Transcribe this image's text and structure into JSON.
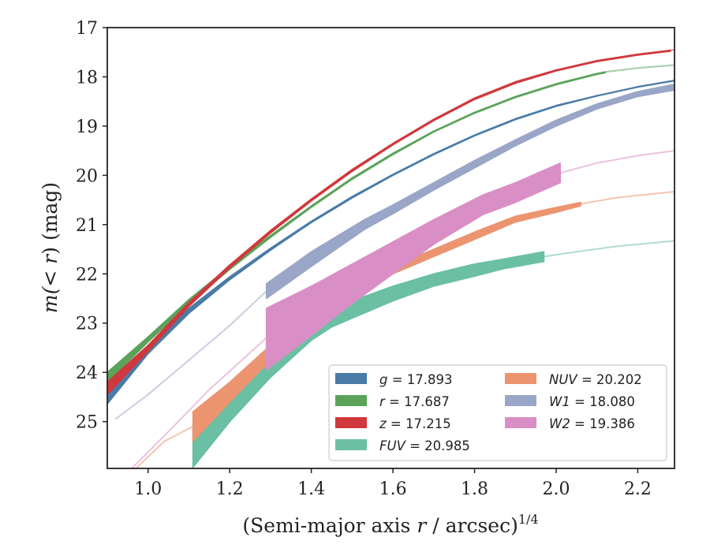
{
  "chart_data": {
    "type": "line",
    "title": "",
    "xlabel": "(Semi-major axis r / arcsec)^{1/4}",
    "xlabel_parts": {
      "main": "(Semi-major axis ",
      "var": "r",
      "rest": " / arcsec)",
      "exp": "1/4"
    },
    "ylabel": "m(<r) (mag)",
    "ylabel_parts": {
      "pre": "m(",
      "var": "< r",
      "post": ") (mag)"
    },
    "xlim": [
      0.9,
      2.29
    ],
    "ylim": [
      25.95,
      17.0
    ],
    "y_inverted": true,
    "xticks": [
      1.0,
      1.2,
      1.4,
      1.6,
      1.8,
      2.0,
      2.2
    ],
    "xtick_labels": [
      "1.0",
      "1.2",
      "1.4",
      "1.6",
      "1.8",
      "2.0",
      "2.2"
    ],
    "yticks": [
      17,
      18,
      19,
      20,
      21,
      22,
      23,
      24,
      25
    ],
    "ytick_labels": [
      "17",
      "18",
      "19",
      "20",
      "21",
      "22",
      "23",
      "24",
      "25"
    ],
    "grid": false,
    "legend_position": "lower-right",
    "legend_columns": 2,
    "series": [
      {
        "name": "g = 17.893",
        "label_var": "g",
        "label_val": "= 17.893",
        "color": "#4a7ba7",
        "band": {
          "x": [
            0.9,
            1.0,
            1.1,
            1.2,
            1.3,
            1.4,
            1.5,
            1.6,
            1.7,
            1.8,
            1.9,
            2.0,
            2.1,
            2.2,
            2.29
          ],
          "y_upper": [
            24.48,
            23.5,
            22.7,
            22.06,
            21.48,
            20.93,
            20.43,
            19.98,
            19.56,
            19.18,
            18.85,
            18.58,
            18.38,
            18.2,
            18.07
          ],
          "y_lower": [
            24.64,
            23.62,
            22.8,
            22.12,
            21.52,
            20.96,
            20.46,
            20.0,
            19.58,
            19.2,
            18.87,
            18.6,
            18.39,
            18.21,
            18.08
          ],
          "x_end": 2.2
        },
        "ext_x": [
          2.2,
          2.29
        ],
        "ext_y": [
          18.2,
          18.08
        ]
      },
      {
        "name": "r = 17.687",
        "label_var": "r",
        "label_val": "= 17.687",
        "color": "#5ba35a",
        "band": {
          "x": [
            0.9,
            1.0,
            1.1,
            1.2,
            1.3,
            1.4,
            1.5,
            1.6,
            1.7,
            1.8,
            1.9,
            2.0,
            2.1,
            2.12
          ],
          "y_upper": [
            24.0,
            23.28,
            22.52,
            21.85,
            21.22,
            20.62,
            20.05,
            19.55,
            19.1,
            18.72,
            18.4,
            18.14,
            17.93,
            17.9
          ],
          "y_lower": [
            24.2,
            23.38,
            22.6,
            21.91,
            21.26,
            20.65,
            20.08,
            19.58,
            19.12,
            18.74,
            18.42,
            18.16,
            17.95,
            17.92
          ],
          "x_end": 2.12
        },
        "ext_x": [
          2.12,
          2.2,
          2.29
        ],
        "ext_y": [
          17.9,
          17.82,
          17.76
        ]
      },
      {
        "name": "z = 17.215",
        "label_var": "z",
        "label_val": "= 17.215",
        "color": "#d0383d",
        "band": {
          "x": [
            0.9,
            1.0,
            1.1,
            1.2,
            1.3,
            1.4,
            1.5,
            1.6,
            1.7,
            1.8,
            1.9,
            2.0,
            2.1,
            2.2,
            2.28
          ],
          "y_upper": [
            24.2,
            23.45,
            22.58,
            21.82,
            21.12,
            20.48,
            19.88,
            19.35,
            18.86,
            18.43,
            18.1,
            17.86,
            17.67,
            17.54,
            17.46
          ],
          "y_lower": [
            24.45,
            23.57,
            22.66,
            21.88,
            21.17,
            20.52,
            19.92,
            19.38,
            18.89,
            18.46,
            18.13,
            17.88,
            17.69,
            17.56,
            17.48
          ],
          "x_end": 2.28
        },
        "ext_x": [
          2.28,
          2.29
        ],
        "ext_y": [
          17.46,
          17.45
        ]
      },
      {
        "name": "FUV = 20.985",
        "label_var": "FUV",
        "label_val": "= 20.985",
        "color": "#6bbfa3",
        "band": {
          "x": [
            1.11,
            1.2,
            1.3,
            1.4,
            1.45,
            1.5,
            1.6,
            1.7,
            1.8,
            1.87,
            1.97
          ],
          "y_upper": [
            25.05,
            24.45,
            23.7,
            23.0,
            22.75,
            22.55,
            22.25,
            22.0,
            21.8,
            21.7,
            21.55
          ],
          "y_lower": [
            25.93,
            25.0,
            24.1,
            23.35,
            23.08,
            22.9,
            22.55,
            22.25,
            22.05,
            21.9,
            21.75
          ],
          "x_end": 1.97
        },
        "ext_x": [
          1.97,
          2.05,
          2.15,
          2.29
        ],
        "ext_y": [
          21.65,
          21.55,
          21.44,
          21.33
        ]
      },
      {
        "name": "NUV = 20.202",
        "label_var": "NUV",
        "label_val": "= 20.202",
        "color": "#ec9470",
        "band": {
          "x": [
            1.11,
            1.2,
            1.3,
            1.4,
            1.5,
            1.6,
            1.7,
            1.8,
            1.9,
            2.0,
            2.06
          ],
          "y_upper": [
            24.8,
            24.2,
            23.45,
            22.85,
            22.3,
            21.85,
            21.5,
            21.15,
            20.83,
            20.65,
            20.55
          ],
          "y_lower": [
            25.4,
            24.6,
            23.75,
            23.05,
            22.5,
            22.0,
            21.65,
            21.3,
            20.95,
            20.75,
            20.62
          ],
          "x_end": 2.06
        },
        "ext_x": [
          0.97,
          1.04,
          1.11
        ],
        "ext_y": [
          25.95,
          25.4,
          25.1
        ],
        "ext2_x": [
          2.06,
          2.15,
          2.29
        ],
        "ext2_y": [
          20.58,
          20.45,
          20.33
        ]
      },
      {
        "name": "W1 = 18.080",
        "label_var": "W1",
        "label_val": "= 18.080",
        "color": "#9aa6c8",
        "band": {
          "x": [
            1.29,
            1.4,
            1.53,
            1.6,
            1.7,
            1.8,
            1.9,
            2.0,
            2.1,
            2.2,
            2.29
          ],
          "y_upper": [
            22.2,
            21.55,
            20.9,
            20.6,
            20.15,
            19.7,
            19.28,
            18.88,
            18.55,
            18.3,
            18.15
          ],
          "y_lower": [
            22.5,
            21.85,
            21.1,
            20.78,
            20.3,
            19.85,
            19.4,
            19.0,
            18.65,
            18.4,
            18.27
          ],
          "x_end": 2.29
        },
        "ext_x": [
          0.92,
          1.0,
          1.1,
          1.2,
          1.29
        ],
        "ext_y": [
          24.95,
          24.45,
          23.75,
          23.05,
          22.35
        ]
      },
      {
        "name": "W2 = 19.386",
        "label_var": "W2",
        "label_val": "= 19.386",
        "color": "#d98fc6",
        "band": {
          "x": [
            1.29,
            1.4,
            1.5,
            1.6,
            1.7,
            1.82,
            1.9,
            2.01
          ],
          "y_upper": [
            22.7,
            22.25,
            21.8,
            21.35,
            20.9,
            20.4,
            20.15,
            19.75
          ],
          "y_lower": [
            23.95,
            23.25,
            22.6,
            22.0,
            21.4,
            20.8,
            20.55,
            20.15
          ],
          "x_end": 2.01
        },
        "ext_x": [
          0.96,
          1.05,
          1.15,
          1.29
        ],
        "ext_y": [
          25.95,
          25.2,
          24.35,
          23.3
        ],
        "ext2_x": [
          2.01,
          2.1,
          2.2,
          2.29
        ],
        "ext2_y": [
          19.95,
          19.75,
          19.6,
          19.5
        ]
      }
    ]
  }
}
